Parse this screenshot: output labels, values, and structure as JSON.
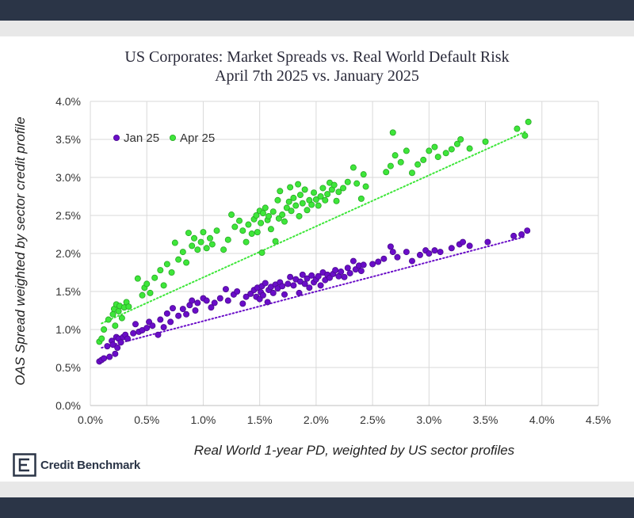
{
  "chart_data": {
    "type": "scatter",
    "title": "US Corporates: Market Spreads vs. Real World Default Risk",
    "subtitle": "April 7th 2025 vs. January 2025",
    "xlabel": "Real World 1-year PD, weighted by US sector profiles",
    "ylabel": "OAS Spread weighted by sector credit profile",
    "xlim": [
      0,
      4.5
    ],
    "ylim": [
      0,
      4.0
    ],
    "x_ticks": [
      "0.0%",
      "0.5%",
      "1.0%",
      "1.5%",
      "2.0%",
      "2.5%",
      "3.0%",
      "3.5%",
      "4.0%",
      "4.5%"
    ],
    "y_ticks": [
      "0.0%",
      "0.5%",
      "1.0%",
      "1.5%",
      "2.0%",
      "2.5%",
      "3.0%",
      "3.5%",
      "4.0%"
    ],
    "grid": true,
    "legend_position": "top-left",
    "series": [
      {
        "name": "Jan 25",
        "color": "#6a0dc8",
        "edge": "#4b0b8f",
        "trendline": [
          [
            0.1,
            0.76
          ],
          [
            3.85,
            2.22
          ]
        ],
        "points": [
          [
            0.08,
            0.58
          ],
          [
            0.1,
            0.6
          ],
          [
            0.12,
            0.62
          ],
          [
            0.15,
            0.78
          ],
          [
            0.17,
            0.64
          ],
          [
            0.19,
            0.85
          ],
          [
            0.2,
            0.8
          ],
          [
            0.22,
            0.68
          ],
          [
            0.23,
            0.9
          ],
          [
            0.24,
            0.76
          ],
          [
            0.25,
            0.88
          ],
          [
            0.27,
            0.83
          ],
          [
            0.29,
            0.9
          ],
          [
            0.31,
            0.93
          ],
          [
            0.33,
            0.88
          ],
          [
            0.38,
            0.95
          ],
          [
            0.4,
            1.07
          ],
          [
            0.43,
            0.97
          ],
          [
            0.46,
            0.99
          ],
          [
            0.5,
            1.02
          ],
          [
            0.52,
            1.1
          ],
          [
            0.55,
            1.05
          ],
          [
            0.6,
            0.93
          ],
          [
            0.62,
            1.13
          ],
          [
            0.65,
            1.03
          ],
          [
            0.68,
            1.21
          ],
          [
            0.71,
            1.1
          ],
          [
            0.73,
            1.28
          ],
          [
            0.78,
            1.18
          ],
          [
            0.82,
            1.27
          ],
          [
            0.85,
            1.2
          ],
          [
            0.88,
            1.32
          ],
          [
            0.9,
            1.38
          ],
          [
            0.93,
            1.25
          ],
          [
            0.95,
            1.35
          ],
          [
            1.0,
            1.41
          ],
          [
            1.03,
            1.38
          ],
          [
            1.07,
            1.29
          ],
          [
            1.1,
            1.35
          ],
          [
            1.15,
            1.41
          ],
          [
            1.2,
            1.53
          ],
          [
            1.22,
            1.38
          ],
          [
            1.27,
            1.46
          ],
          [
            1.3,
            1.5
          ],
          [
            1.35,
            1.34
          ],
          [
            1.38,
            1.43
          ],
          [
            1.42,
            1.47
          ],
          [
            1.45,
            1.52
          ],
          [
            1.47,
            1.43
          ],
          [
            1.48,
            1.55
          ],
          [
            1.5,
            1.4
          ],
          [
            1.51,
            1.49
          ],
          [
            1.52,
            1.57
          ],
          [
            1.53,
            1.45
          ],
          [
            1.55,
            1.61
          ],
          [
            1.57,
            1.36
          ],
          [
            1.58,
            1.52
          ],
          [
            1.6,
            1.56
          ],
          [
            1.62,
            1.48
          ],
          [
            1.64,
            1.59
          ],
          [
            1.66,
            1.54
          ],
          [
            1.68,
            1.62
          ],
          [
            1.7,
            1.57
          ],
          [
            1.72,
            1.46
          ],
          [
            1.75,
            1.6
          ],
          [
            1.77,
            1.69
          ],
          [
            1.8,
            1.58
          ],
          [
            1.82,
            1.66
          ],
          [
            1.85,
            1.48
          ],
          [
            1.86,
            1.63
          ],
          [
            1.88,
            1.72
          ],
          [
            1.9,
            1.6
          ],
          [
            1.92,
            1.67
          ],
          [
            1.94,
            1.55
          ],
          [
            1.96,
            1.71
          ],
          [
            1.98,
            1.62
          ],
          [
            2.0,
            1.66
          ],
          [
            2.02,
            1.7
          ],
          [
            2.04,
            1.58
          ],
          [
            2.06,
            1.75
          ],
          [
            2.08,
            1.65
          ],
          [
            2.1,
            1.72
          ],
          [
            2.12,
            1.68
          ],
          [
            2.15,
            1.73
          ],
          [
            2.17,
            1.78
          ],
          [
            2.2,
            1.7
          ],
          [
            2.22,
            1.76
          ],
          [
            2.25,
            1.69
          ],
          [
            2.28,
            1.81
          ],
          [
            2.3,
            1.74
          ],
          [
            2.33,
            1.9
          ],
          [
            2.35,
            1.79
          ],
          [
            2.38,
            1.84
          ],
          [
            2.4,
            1.77
          ],
          [
            2.42,
            1.85
          ],
          [
            2.5,
            1.86
          ],
          [
            2.55,
            1.89
          ],
          [
            2.6,
            1.93
          ],
          [
            2.66,
            2.09
          ],
          [
            2.68,
            2.02
          ],
          [
            2.72,
            1.95
          ],
          [
            2.8,
            2.02
          ],
          [
            2.85,
            1.9
          ],
          [
            2.92,
            1.98
          ],
          [
            2.97,
            2.04
          ],
          [
            3.0,
            2.0
          ],
          [
            3.05,
            2.04
          ],
          [
            3.1,
            2.02
          ],
          [
            3.2,
            2.07
          ],
          [
            3.27,
            2.12
          ],
          [
            3.3,
            2.15
          ],
          [
            3.36,
            2.1
          ],
          [
            3.52,
            2.15
          ],
          [
            3.75,
            2.23
          ],
          [
            3.82,
            2.25
          ],
          [
            3.87,
            2.3
          ]
        ]
      },
      {
        "name": "Apr 25",
        "color": "#3ee63a",
        "edge": "#27a824",
        "trendline": [
          [
            0.1,
            1.08
          ],
          [
            3.85,
            3.6
          ]
        ],
        "points": [
          [
            0.08,
            0.84
          ],
          [
            0.1,
            0.88
          ],
          [
            0.12,
            1.0
          ],
          [
            0.16,
            1.13
          ],
          [
            0.2,
            1.2
          ],
          [
            0.21,
            1.27
          ],
          [
            0.22,
            1.05
          ],
          [
            0.23,
            1.33
          ],
          [
            0.25,
            1.24
          ],
          [
            0.26,
            1.31
          ],
          [
            0.28,
            1.15
          ],
          [
            0.3,
            1.29
          ],
          [
            0.32,
            1.36
          ],
          [
            0.34,
            1.3
          ],
          [
            0.42,
            1.67
          ],
          [
            0.46,
            1.45
          ],
          [
            0.48,
            1.55
          ],
          [
            0.5,
            1.6
          ],
          [
            0.53,
            1.48
          ],
          [
            0.57,
            1.68
          ],
          [
            0.62,
            1.78
          ],
          [
            0.65,
            1.58
          ],
          [
            0.68,
            1.86
          ],
          [
            0.72,
            1.75
          ],
          [
            0.75,
            2.14
          ],
          [
            0.78,
            1.92
          ],
          [
            0.82,
            2.02
          ],
          [
            0.85,
            1.88
          ],
          [
            0.87,
            2.27
          ],
          [
            0.9,
            2.1
          ],
          [
            0.92,
            2.2
          ],
          [
            0.95,
            2.05
          ],
          [
            0.98,
            2.15
          ],
          [
            1.0,
            2.28
          ],
          [
            1.03,
            2.07
          ],
          [
            1.06,
            2.2
          ],
          [
            1.08,
            2.12
          ],
          [
            1.12,
            2.3
          ],
          [
            1.18,
            2.05
          ],
          [
            1.22,
            2.18
          ],
          [
            1.25,
            2.51
          ],
          [
            1.28,
            2.35
          ],
          [
            1.32,
            2.43
          ],
          [
            1.35,
            2.3
          ],
          [
            1.38,
            2.15
          ],
          [
            1.4,
            2.38
          ],
          [
            1.43,
            2.26
          ],
          [
            1.45,
            2.45
          ],
          [
            1.47,
            2.5
          ],
          [
            1.48,
            2.28
          ],
          [
            1.5,
            2.56
          ],
          [
            1.51,
            2.4
          ],
          [
            1.52,
            2.01
          ],
          [
            1.53,
            2.53
          ],
          [
            1.55,
            2.6
          ],
          [
            1.57,
            2.44
          ],
          [
            1.58,
            2.49
          ],
          [
            1.6,
            2.32
          ],
          [
            1.62,
            2.55
          ],
          [
            1.64,
            2.16
          ],
          [
            1.66,
            2.7
          ],
          [
            1.67,
            2.46
          ],
          [
            1.68,
            2.82
          ],
          [
            1.7,
            2.51
          ],
          [
            1.72,
            2.42
          ],
          [
            1.74,
            2.6
          ],
          [
            1.76,
            2.68
          ],
          [
            1.77,
            2.87
          ],
          [
            1.78,
            2.56
          ],
          [
            1.8,
            2.73
          ],
          [
            1.82,
            2.63
          ],
          [
            1.84,
            2.91
          ],
          [
            1.85,
            2.49
          ],
          [
            1.86,
            2.77
          ],
          [
            1.88,
            2.66
          ],
          [
            1.9,
            2.84
          ],
          [
            1.92,
            2.57
          ],
          [
            1.94,
            2.7
          ],
          [
            1.96,
            2.64
          ],
          [
            1.98,
            2.8
          ],
          [
            2.0,
            2.71
          ],
          [
            2.02,
            2.63
          ],
          [
            2.04,
            2.75
          ],
          [
            2.06,
            2.86
          ],
          [
            2.08,
            2.7
          ],
          [
            2.1,
            2.78
          ],
          [
            2.12,
            2.93
          ],
          [
            2.14,
            2.84
          ],
          [
            2.16,
            2.9
          ],
          [
            2.18,
            2.69
          ],
          [
            2.2,
            2.81
          ],
          [
            2.24,
            2.86
          ],
          [
            2.28,
            2.94
          ],
          [
            2.33,
            3.13
          ],
          [
            2.36,
            2.92
          ],
          [
            2.4,
            2.72
          ],
          [
            2.42,
            3.04
          ],
          [
            2.44,
            2.88
          ],
          [
            2.62,
            3.07
          ],
          [
            2.66,
            3.15
          ],
          [
            2.68,
            3.59
          ],
          [
            2.7,
            3.29
          ],
          [
            2.75,
            3.2
          ],
          [
            2.8,
            3.35
          ],
          [
            2.85,
            3.06
          ],
          [
            2.9,
            3.17
          ],
          [
            2.95,
            3.23
          ],
          [
            3.0,
            3.35
          ],
          [
            3.05,
            3.4
          ],
          [
            3.08,
            3.27
          ],
          [
            3.15,
            3.32
          ],
          [
            3.2,
            3.37
          ],
          [
            3.25,
            3.44
          ],
          [
            3.28,
            3.5
          ],
          [
            3.36,
            3.38
          ],
          [
            3.5,
            3.47
          ],
          [
            3.78,
            3.64
          ],
          [
            3.85,
            3.55
          ],
          [
            3.88,
            3.73
          ]
        ]
      }
    ]
  },
  "branding": {
    "logo_text": "Credit Benchmark"
  }
}
